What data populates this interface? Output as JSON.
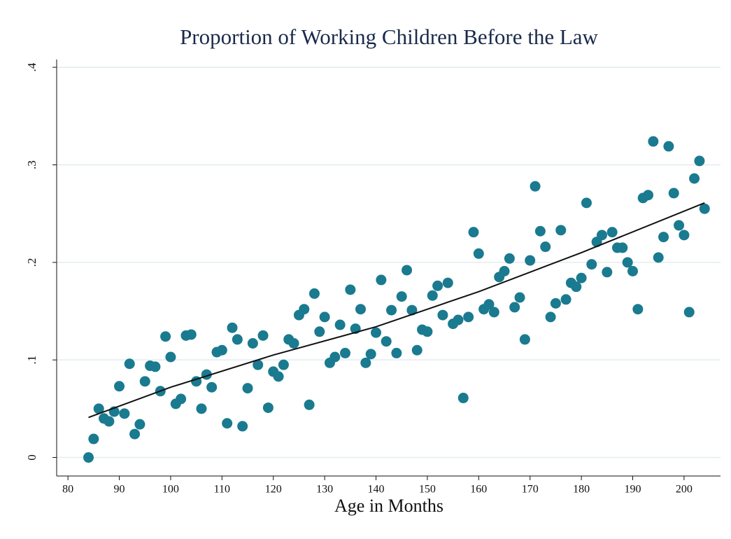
{
  "chart_data": {
    "type": "scatter",
    "title": "Proportion of Working Children Before the Law",
    "x_label": "Age in Months",
    "x": [
      84,
      85,
      86,
      87,
      88,
      89,
      90,
      91,
      92,
      93,
      94,
      95,
      96,
      97,
      98,
      99,
      100,
      101,
      102,
      103,
      104,
      105,
      106,
      107,
      108,
      109,
      110,
      111,
      112,
      113,
      114,
      115,
      116,
      117,
      118,
      119,
      120,
      121,
      122,
      123,
      124,
      125,
      126,
      127,
      128,
      129,
      130,
      131,
      132,
      133,
      134,
      135,
      136,
      137,
      138,
      139,
      140,
      141,
      142,
      143,
      144,
      145,
      146,
      147,
      148,
      149,
      150,
      151,
      152,
      153,
      154,
      155,
      156,
      157,
      158,
      159,
      160,
      161,
      162,
      163,
      164,
      165,
      166,
      167,
      168,
      169,
      170,
      171,
      172,
      173,
      174,
      175,
      176,
      177,
      178,
      179,
      180,
      181,
      182,
      183,
      184,
      185,
      186,
      187,
      188,
      189,
      190,
      191,
      192,
      193,
      194,
      195,
      196,
      197,
      198,
      199,
      200,
      201,
      202,
      203,
      204
    ],
    "series": [
      {
        "type": "scatter",
        "color": "#1a7a8f",
        "values": [
          0.0,
          0.019,
          0.05,
          0.04,
          0.037,
          0.047,
          0.073,
          0.045,
          0.096,
          0.024,
          0.034,
          0.078,
          0.094,
          0.093,
          0.068,
          0.124,
          0.103,
          0.055,
          0.06,
          0.125,
          0.126,
          0.078,
          0.05,
          0.085,
          0.072,
          0.108,
          0.11,
          0.035,
          0.133,
          0.121,
          0.032,
          0.071,
          0.117,
          0.095,
          0.125,
          0.051,
          0.088,
          0.083,
          0.095,
          0.121,
          0.117,
          0.146,
          0.152,
          0.054,
          0.168,
          0.129,
          0.144,
          0.097,
          0.103,
          0.136,
          0.107,
          0.172,
          0.132,
          0.152,
          0.097,
          0.106,
          0.128,
          0.182,
          0.119,
          0.151,
          0.107,
          0.165,
          0.192,
          0.151,
          0.11,
          0.131,
          0.129,
          0.166,
          0.176,
          0.146,
          0.179,
          0.137,
          0.141,
          0.061,
          0.144,
          0.231,
          0.209,
          0.152,
          0.157,
          0.149,
          0.185,
          0.191,
          0.204,
          0.154,
          0.164,
          0.121,
          0.202,
          0.278,
          0.232,
          0.216,
          0.144,
          0.158,
          0.233,
          0.162,
          0.179,
          0.175,
          0.184,
          0.261,
          0.198,
          0.221,
          0.228,
          0.19,
          0.231,
          0.215,
          0.215,
          0.2,
          0.191,
          0.152,
          0.266,
          0.269,
          0.324,
          0.205,
          0.226,
          0.319,
          0.271,
          0.238,
          0.228,
          0.149,
          0.286,
          0.304,
          0.255
        ]
      },
      {
        "type": "line",
        "color": "#111111",
        "x": [
          84,
          100,
          120,
          140,
          160,
          180,
          204
        ],
        "values": [
          0.041,
          0.072,
          0.105,
          0.134,
          0.17,
          0.21,
          0.261
        ]
      }
    ],
    "xlim": [
      77.8,
      207.1
    ],
    "ylim": [
      -0.019,
      0.408
    ],
    "xticks": [
      80,
      90,
      100,
      110,
      120,
      130,
      140,
      150,
      160,
      170,
      180,
      190,
      200
    ],
    "yticks": [
      0,
      {
        "value": 0.1,
        "label": ".1"
      },
      {
        "value": 0.2,
        "label": ".2"
      },
      {
        "value": 0.3,
        "label": ".3"
      },
      {
        "value": 0.4,
        "label": ".4"
      }
    ],
    "grid": true
  }
}
